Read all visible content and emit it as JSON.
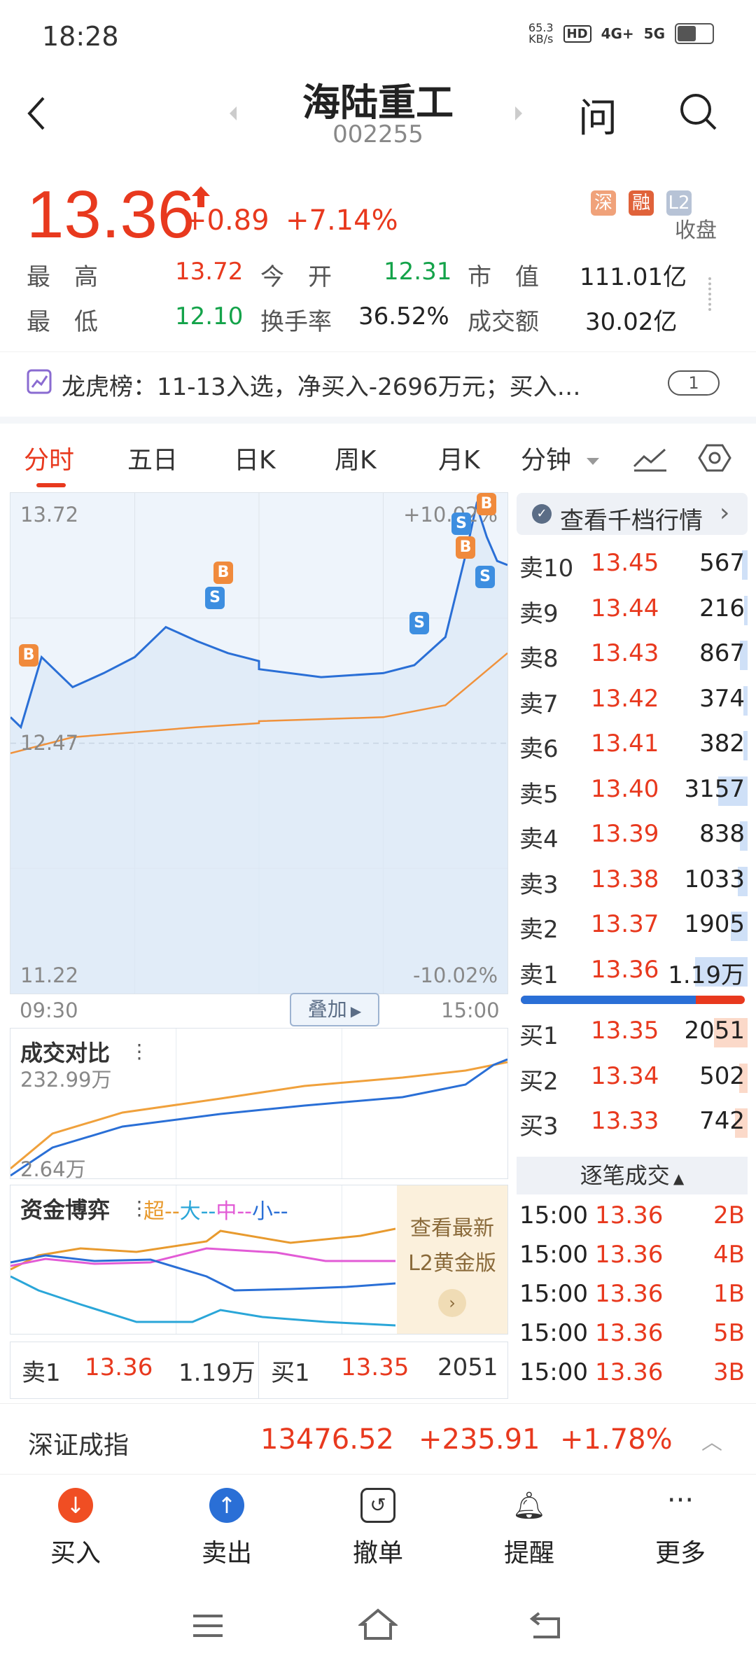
{
  "status_bar": {
    "time": "18:28",
    "net_speed": "65.3\nKB/s",
    "hd": "HD",
    "sig1": "4G+",
    "sig2": "5G"
  },
  "header": {
    "title": "海陆重工",
    "code": "002255",
    "ask_label": "问"
  },
  "quote": {
    "price": "13.36",
    "change": "+0.89",
    "change_pct": "+7.14%",
    "tags": [
      "深",
      "融",
      "L2"
    ],
    "collapse_label": "收盘",
    "high_label": "最　高",
    "high": "13.72",
    "open_label": "今　开",
    "open": "12.31",
    "mcap_label": "市　值",
    "mcap": "111.01亿",
    "low_label": "最　低",
    "low": "12.10",
    "turnover_label": "换手率",
    "turnover": "36.52%",
    "amount_label": "成交额",
    "amount": "30.02亿"
  },
  "dragon": {
    "text": "龙虎榜：11-13入选，净买入-2696万元；买入…",
    "badge": "1"
  },
  "tabs": [
    "分时",
    "五日",
    "日K",
    "周K",
    "月K",
    "分钟"
  ],
  "chart": {
    "price_high": "13.72",
    "price_low": "11.22",
    "pct_high": "+10.02%",
    "pct_low": "-10.02%",
    "prev_close": "12.47",
    "time_start": "09:30",
    "time_end": "15:00",
    "overlay_label": "叠加",
    "vol_title": "成交对比",
    "vol_high": "232.99万",
    "vol_low": "2.64万",
    "fund_title": "资金博弈",
    "fund_legend": [
      "超",
      "大",
      "中",
      "小"
    ],
    "promo": {
      "line1": "查看最新",
      "line2": "L2黄金版"
    },
    "colors": {
      "price": "#2a6fd6",
      "avg": "#f0923c",
      "super": "#e89a2e",
      "big": "#2aa6d8",
      "mid": "#e25bd6",
      "small": "#2a6fd6"
    }
  },
  "chart_data": {
    "type": "line",
    "title": "",
    "ylim": [
      11.22,
      13.72
    ],
    "series": [
      {
        "name": "",
        "x": [
          "09:30",
          "09:35",
          "09:45",
          "10:00",
          "10:15",
          "10:30",
          "10:45",
          "11:00",
          "11:15",
          "11:30",
          "13:00",
          "13:30",
          "14:00",
          "14:15",
          "14:30",
          "14:40",
          "14:45",
          "14:50",
          "14:55",
          "15:00"
        ],
        "values": [
          12.6,
          12.55,
          12.9,
          12.75,
          12.82,
          12.9,
          13.05,
          12.98,
          12.92,
          12.88,
          12.84,
          12.8,
          12.82,
          12.86,
          13.0,
          13.42,
          13.66,
          13.5,
          13.38,
          13.36
        ]
      },
      {
        "name": "",
        "x": [
          "09:30",
          "10:00",
          "11:00",
          "11:30",
          "13:00",
          "14:00",
          "14:30",
          "15:00"
        ],
        "values": [
          12.42,
          12.5,
          12.55,
          12.57,
          12.58,
          12.6,
          12.66,
          12.92
        ]
      }
    ]
  },
  "book": {
    "header": "查看千档行情",
    "sells": [
      {
        "name": "卖10",
        "price": "13.45",
        "vol": "567",
        "ratio": 0.05
      },
      {
        "name": "卖9",
        "price": "13.44",
        "vol": "216",
        "ratio": 0.03
      },
      {
        "name": "卖8",
        "price": "13.43",
        "vol": "867",
        "ratio": 0.07
      },
      {
        "name": "卖7",
        "price": "13.42",
        "vol": "374",
        "ratio": 0.04
      },
      {
        "name": "卖6",
        "price": "13.41",
        "vol": "382",
        "ratio": 0.04
      },
      {
        "name": "卖5",
        "price": "13.40",
        "vol": "3157",
        "ratio": 0.28
      },
      {
        "name": "卖4",
        "price": "13.39",
        "vol": "838",
        "ratio": 0.07
      },
      {
        "name": "卖3",
        "price": "13.38",
        "vol": "1033",
        "ratio": 0.09
      },
      {
        "name": "卖2",
        "price": "13.37",
        "vol": "1905",
        "ratio": 0.16
      },
      {
        "name": "卖1",
        "price": "13.36",
        "vol": "1.19万",
        "ratio": 0.5
      }
    ],
    "buys": [
      {
        "name": "买1",
        "price": "13.35",
        "vol": "2051",
        "ratio": 0.32
      },
      {
        "name": "买2",
        "price": "13.34",
        "vol": "502",
        "ratio": 0.08
      },
      {
        "name": "买3",
        "price": "13.33",
        "vol": "742",
        "ratio": 0.12
      }
    ],
    "power_ratio": 0.78,
    "ticks_header": "逐笔成交",
    "ticks": [
      {
        "time": "15:00",
        "price": "13.36",
        "vol": "2B"
      },
      {
        "time": "15:00",
        "price": "13.36",
        "vol": "4B"
      },
      {
        "time": "15:00",
        "price": "13.36",
        "vol": "1B"
      },
      {
        "time": "15:00",
        "price": "13.36",
        "vol": "5B"
      },
      {
        "time": "15:00",
        "price": "13.36",
        "vol": "3B"
      }
    ]
  },
  "bottom_row": {
    "sell1_label": "卖1",
    "sell1_price": "13.36",
    "sell1_vol": "1.19万",
    "buy1_label": "买1",
    "buy1_price": "13.35",
    "buy1_vol": "2051"
  },
  "index": {
    "name": "深证成指",
    "value": "13476.52",
    "change": "+235.91",
    "pct": "+1.78%"
  },
  "actions": [
    {
      "label": "买入"
    },
    {
      "label": "卖出"
    },
    {
      "label": "撤单"
    },
    {
      "label": "提醒"
    },
    {
      "label": "更多"
    }
  ]
}
